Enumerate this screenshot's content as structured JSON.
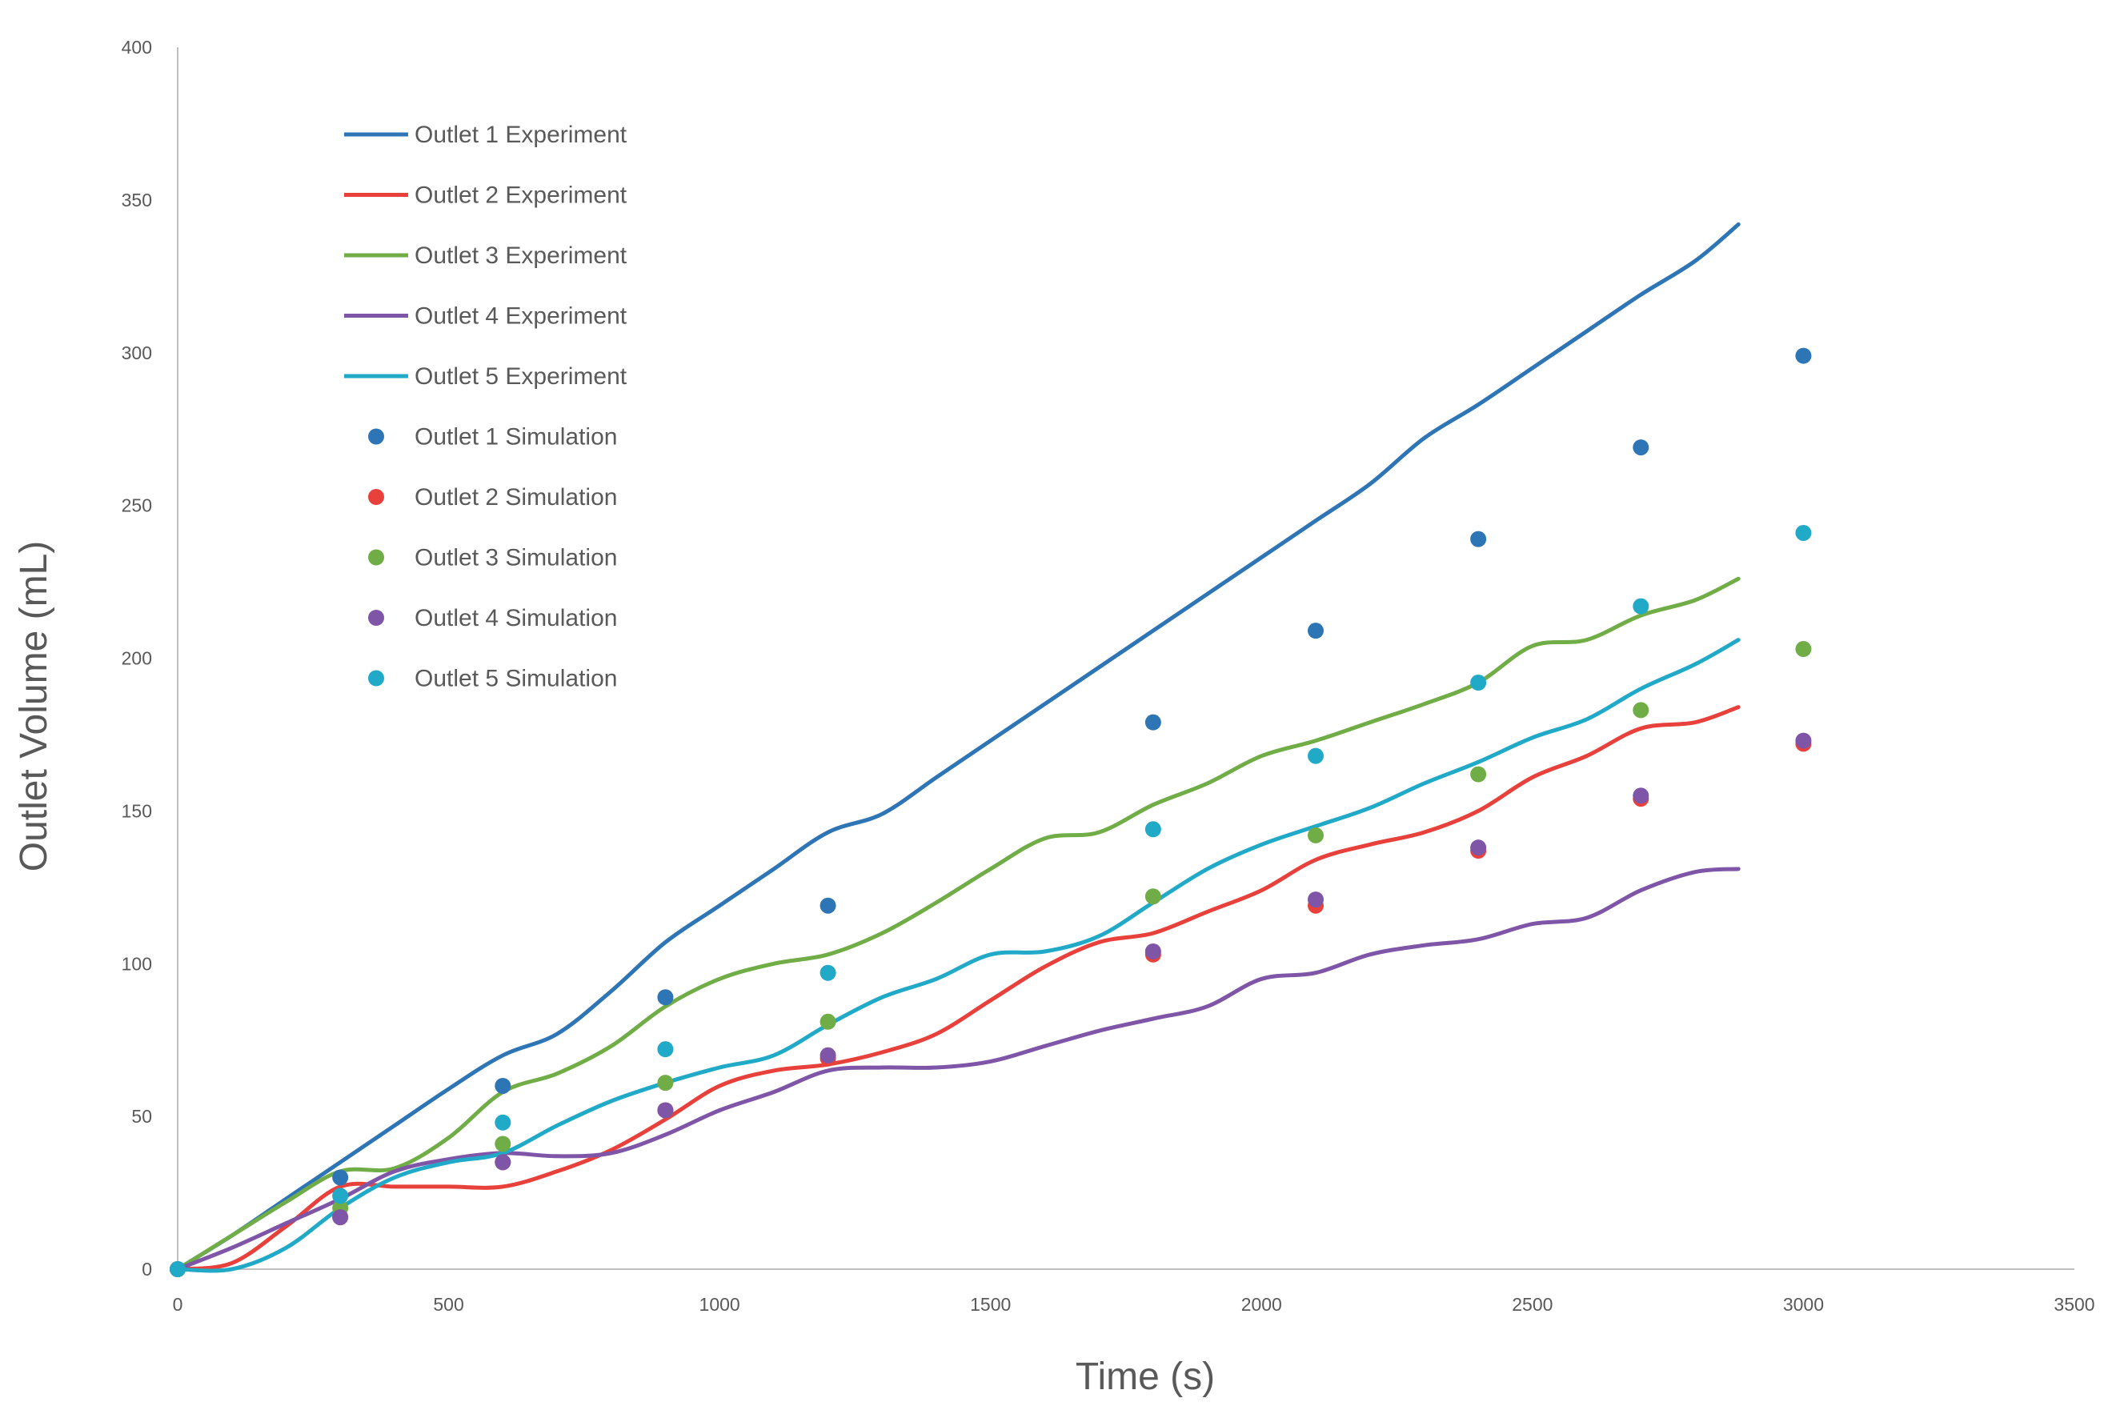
{
  "chart_data": {
    "type": "line",
    "title": "",
    "xlabel": "Time (s)",
    "ylabel": "Outlet Volume (mL)",
    "xlim": [
      0,
      3500
    ],
    "ylim": [
      0,
      400
    ],
    "xticks": [
      0,
      500,
      1000,
      1500,
      2000,
      2500,
      3000,
      3500
    ],
    "yticks": [
      0,
      50,
      100,
      150,
      200,
      250,
      300,
      350,
      400
    ],
    "grid": false,
    "legend_position": "top-left",
    "series": [
      {
        "name": "Outlet 1 Experiment",
        "kind": "line",
        "color": "#2e75b6",
        "x": [
          0,
          100,
          200,
          300,
          400,
          500,
          600,
          700,
          800,
          900,
          1000,
          1100,
          1200,
          1300,
          1400,
          1500,
          1600,
          1700,
          1800,
          1900,
          2000,
          2100,
          2200,
          2300,
          2400,
          2500,
          2600,
          2700,
          2800,
          2880
        ],
        "y": [
          0,
          11,
          23,
          35,
          47,
          59,
          70,
          77,
          91,
          107,
          119,
          131,
          143,
          149,
          161,
          173,
          185,
          197,
          209,
          221,
          233,
          245,
          257,
          272,
          283,
          295,
          307,
          319,
          330,
          342
        ]
      },
      {
        "name": "Outlet 2 Experiment",
        "kind": "line",
        "color": "#e8403b",
        "x": [
          0,
          100,
          200,
          300,
          400,
          500,
          600,
          700,
          800,
          900,
          1000,
          1100,
          1200,
          1300,
          1400,
          1500,
          1600,
          1700,
          1800,
          1900,
          2000,
          2100,
          2200,
          2300,
          2400,
          2500,
          2600,
          2700,
          2800,
          2880
        ],
        "y": [
          0,
          2,
          14,
          27,
          27,
          27,
          27,
          32,
          39,
          49,
          60,
          65,
          67,
          71,
          77,
          88,
          99,
          107,
          110,
          117,
          124,
          134,
          139,
          143,
          150,
          161,
          168,
          177,
          179,
          184
        ]
      },
      {
        "name": "Outlet 3 Experiment",
        "kind": "line",
        "color": "#70ad47",
        "x": [
          0,
          100,
          200,
          300,
          400,
          500,
          600,
          700,
          800,
          900,
          1000,
          1100,
          1200,
          1300,
          1400,
          1500,
          1600,
          1700,
          1800,
          1900,
          2000,
          2100,
          2200,
          2300,
          2400,
          2500,
          2600,
          2700,
          2800,
          2880
        ],
        "y": [
          0,
          11,
          22,
          32,
          33,
          43,
          58,
          64,
          73,
          86,
          95,
          100,
          103,
          110,
          120,
          131,
          141,
          143,
          152,
          159,
          168,
          173,
          179,
          185,
          192,
          204,
          206,
          214,
          219,
          226
        ]
      },
      {
        "name": "Outlet 4 Experiment",
        "kind": "line",
        "color": "#7f55a8",
        "x": [
          0,
          100,
          200,
          300,
          400,
          500,
          600,
          700,
          800,
          900,
          1000,
          1100,
          1200,
          1300,
          1400,
          1500,
          1600,
          1700,
          1800,
          1900,
          2000,
          2100,
          2200,
          2300,
          2400,
          2500,
          2600,
          2700,
          2800,
          2880
        ],
        "y": [
          0,
          7,
          15,
          23,
          32,
          36,
          38,
          37,
          38,
          44,
          52,
          58,
          65,
          66,
          66,
          68,
          73,
          78,
          82,
          86,
          95,
          97,
          103,
          106,
          108,
          113,
          115,
          124,
          130,
          131
        ]
      },
      {
        "name": "Outlet 5 Experiment",
        "kind": "line",
        "color": "#21a9c8",
        "x": [
          0,
          100,
          200,
          300,
          400,
          500,
          600,
          700,
          800,
          900,
          1000,
          1100,
          1200,
          1300,
          1400,
          1500,
          1600,
          1700,
          1800,
          1900,
          2000,
          2100,
          2200,
          2300,
          2400,
          2500,
          2600,
          2700,
          2800,
          2880
        ],
        "y": [
          0,
          0,
          7,
          20,
          30,
          35,
          38,
          47,
          55,
          61,
          66,
          70,
          80,
          89,
          95,
          103,
          104,
          109,
          120,
          131,
          139,
          145,
          151,
          159,
          166,
          174,
          180,
          190,
          198,
          206
        ]
      },
      {
        "name": "Outlet 1 Simulation",
        "kind": "scatter",
        "color": "#2e75b6",
        "x": [
          0,
          300,
          600,
          900,
          1200,
          1800,
          2100,
          2400,
          2700,
          3000
        ],
        "y": [
          0,
          30,
          60,
          89,
          119,
          179,
          209,
          239,
          269,
          299
        ]
      },
      {
        "name": "Outlet 2 Simulation",
        "kind": "scatter",
        "color": "#e8403b",
        "x": [
          0,
          300,
          600,
          900,
          1200,
          1800,
          2100,
          2400,
          2700,
          3000
        ],
        "y": [
          0,
          17,
          35,
          52,
          69,
          103,
          119,
          137,
          154,
          172
        ]
      },
      {
        "name": "Outlet 3 Simulation",
        "kind": "scatter",
        "color": "#70ad47",
        "x": [
          0,
          300,
          600,
          900,
          1200,
          1800,
          2100,
          2400,
          2700,
          3000
        ],
        "y": [
          0,
          20,
          41,
          61,
          81,
          122,
          142,
          162,
          183,
          203
        ]
      },
      {
        "name": "Outlet 4 Simulation",
        "kind": "scatter",
        "color": "#7f55a8",
        "x": [
          0,
          300,
          600,
          900,
          1200,
          1800,
          2100,
          2400,
          2700,
          3000
        ],
        "y": [
          0,
          17,
          35,
          52,
          70,
          104,
          121,
          138,
          155,
          173
        ]
      },
      {
        "name": "Outlet 5 Simulation",
        "kind": "scatter",
        "color": "#21a9c8",
        "x": [
          0,
          300,
          600,
          900,
          1200,
          1800,
          2100,
          2400,
          2700,
          3000
        ],
        "y": [
          0,
          24,
          48,
          72,
          97,
          144,
          168,
          192,
          217,
          241
        ]
      }
    ]
  }
}
